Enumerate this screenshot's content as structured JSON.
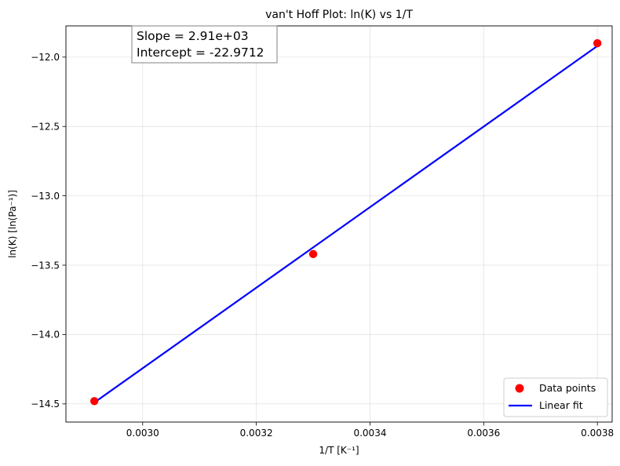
{
  "chart_data": {
    "type": "scatter",
    "title": "van't Hoff Plot: ln(K) vs 1/T",
    "xlabel": "1/T [K⁻¹]",
    "ylabel": "ln(K) [ln(Pa⁻¹)]",
    "xlim": [
      0.002865,
      0.003826
    ],
    "ylim": [
      -14.631,
      -11.775
    ],
    "xticks": [
      0.003,
      0.0032,
      0.0034,
      0.0036,
      0.0038
    ],
    "xtick_labels": [
      "0.0030",
      "0.0032",
      "0.0034",
      "0.0036",
      "0.0038"
    ],
    "yticks": [
      -14.5,
      -14.0,
      -13.5,
      -13.0,
      -12.5,
      -12.0
    ],
    "ytick_labels": [
      "−14.5",
      "−14.0",
      "−13.5",
      "−13.0",
      "−12.5",
      "−12.0"
    ],
    "grid": true,
    "legend_position": "lower right",
    "series": [
      {
        "name": "Data points",
        "kind": "scatter",
        "color": "#ff0000",
        "x": [
          0.002915,
          0.0033,
          0.0038
        ],
        "y": [
          -14.48,
          -13.42,
          -11.9
        ]
      },
      {
        "name": "Linear fit",
        "kind": "line",
        "color": "#0000ff",
        "x": [
          0.002915,
          0.0038
        ],
        "y": [
          -14.49,
          -11.92
        ]
      }
    ],
    "annotation": {
      "lines": [
        "Slope = 2.91e+03",
        "Intercept = -22.9712"
      ]
    }
  }
}
